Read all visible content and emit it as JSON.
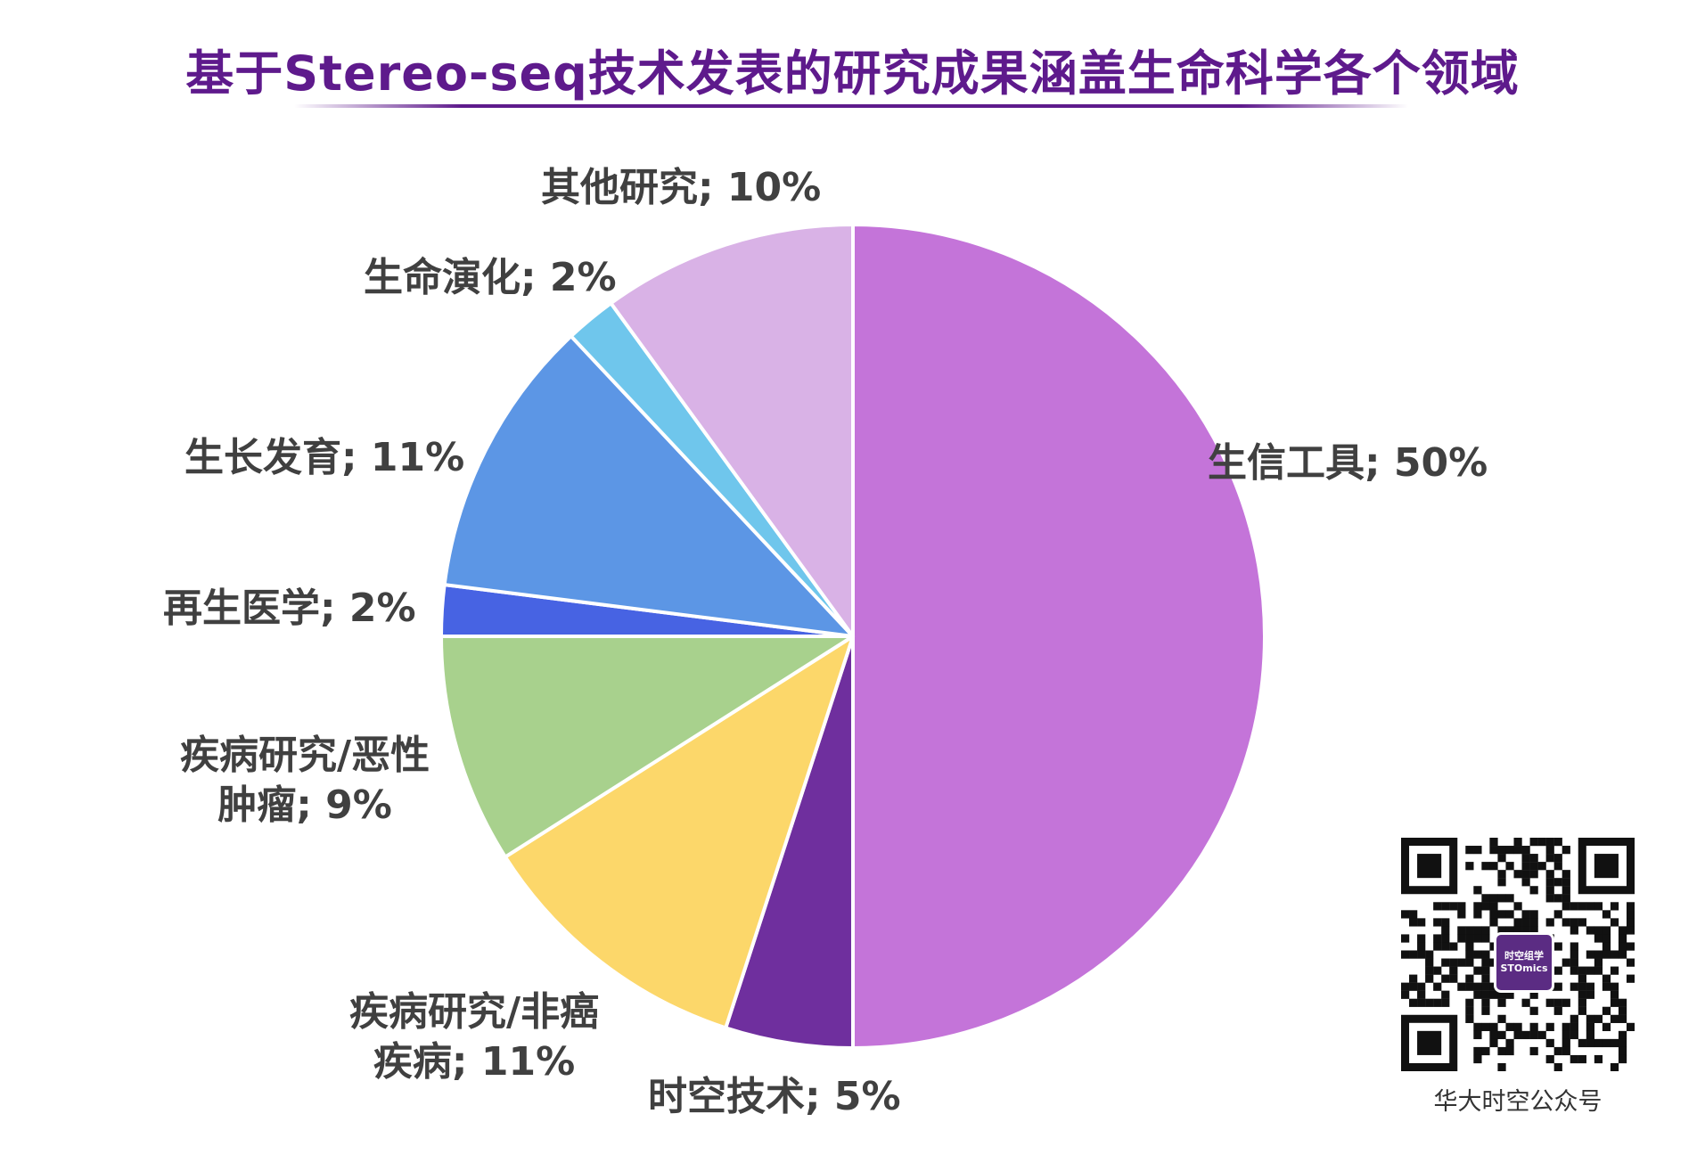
{
  "header": {
    "title": "基于Stereo-seq技术发表的研究成果涵盖生命科学各个领域"
  },
  "chart_data": {
    "type": "pie",
    "title": "基于Stereo-seq技术发表的研究成果涵盖生命科学各个领域",
    "start_angle": "12 o'clock, clockwise",
    "categories": [
      "生信工具",
      "时空技术",
      "疾病研究/非癌疾病",
      "疾病研究/恶性肿瘤",
      "再生医学",
      "生长发育",
      "生命演化",
      "其他研究"
    ],
    "values": [
      50,
      5,
      11,
      9,
      2,
      11,
      2,
      10
    ],
    "unit": "%",
    "colors": [
      "#c474d9",
      "#6f2f9e",
      "#fcd76a",
      "#a8d18d",
      "#4763e3",
      "#5c96e5",
      "#6fc6ec",
      "#d9b2e6"
    ],
    "labels": [
      "生信工具; 50%",
      "时空技术; 5%",
      "疾病研究/非癌疾病; 11%",
      "疾病研究/恶性肿瘤; 9%",
      "再生医学; 2%",
      "生长发育; 11%",
      "生命演化; 2%",
      "其他研究; 10%"
    ],
    "legend": "none (data labels outside slices)"
  },
  "labels": {
    "bioinfo": "生信工具; 50%",
    "spatial": "时空技术; 5%",
    "noncancer_l1": "疾病研究/非癌",
    "noncancer_l2": "疾病; 11%",
    "tumor_l1": "疾病研究/恶性",
    "tumor_l2": "肿瘤; 9%",
    "regen": "再生医学; 2%",
    "growth": "生长发育; 11%",
    "evolution": "生命演化; 2%",
    "other": "其他研究; 10%"
  },
  "qr": {
    "logo_line1": "时空组学",
    "logo_line2": "STOmics",
    "caption": "华大时空公众号"
  }
}
